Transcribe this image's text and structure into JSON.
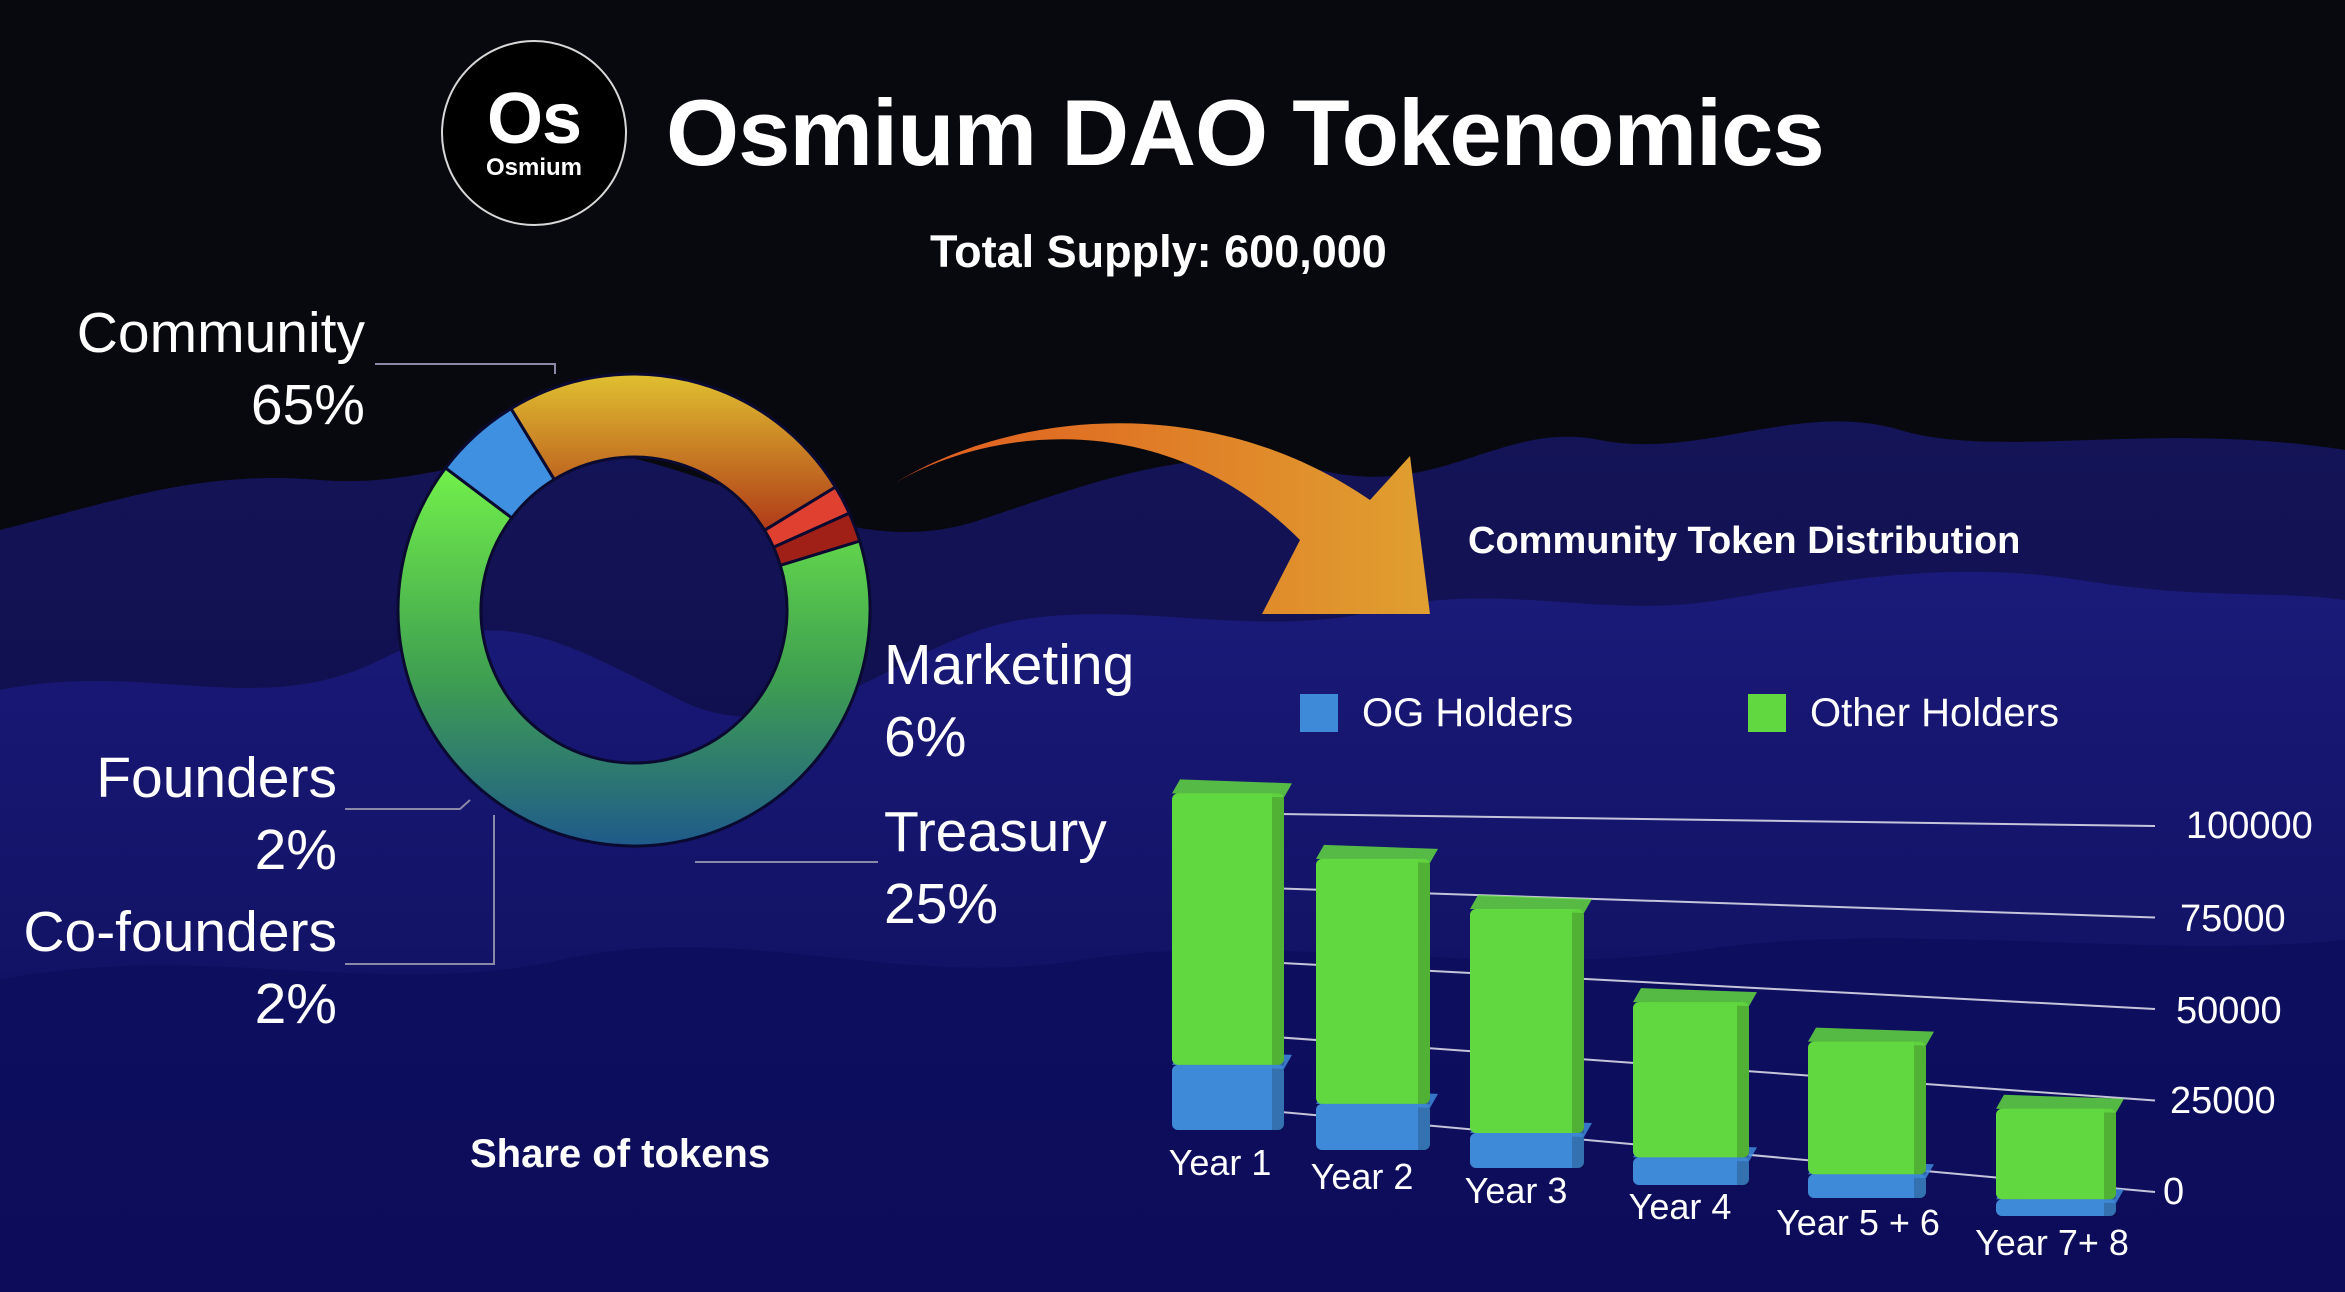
{
  "header": {
    "logo_mark": "Os",
    "logo_word": "Osmium",
    "title": "Osmium DAO Tokenomics",
    "subtitle": "Total Supply: 600,000"
  },
  "chart_data": [
    {
      "type": "pie",
      "caption": "Share of tokens",
      "slices": [
        {
          "label": "Community",
          "value": 65,
          "value_label": "65%",
          "color": "#6ee64a"
        },
        {
          "label": "Marketing",
          "value": 6,
          "value_label": "6%",
          "color": "#3f90e0"
        },
        {
          "label": "Treasury",
          "value": 25,
          "value_label": "25%",
          "color": "#e0a030"
        },
        {
          "label": "Co-founders",
          "value": 2,
          "value_label": "2%",
          "color": "#e04030"
        },
        {
          "label": "Founders",
          "value": 2,
          "value_label": "2%",
          "color": "#a02018"
        }
      ]
    },
    {
      "type": "bar",
      "stacked": true,
      "title": "Community Token Distribution",
      "categories": [
        "Year 1",
        "Year 2",
        "Year 3",
        "Year 4",
        "Year 5 + 6",
        "Year 7+ 8"
      ],
      "series": [
        {
          "name": "OG Holders",
          "color": "#3f8ad8",
          "values": [
            18000,
            13000,
            10000,
            8000,
            7000,
            5000
          ]
        },
        {
          "name": "Other Holders",
          "color": "#62d840",
          "values": [
            75000,
            69000,
            64000,
            45000,
            39000,
            27000
          ]
        }
      ],
      "y_ticks": [
        "0",
        "25000",
        "50000",
        "75000",
        "100000"
      ],
      "ylim": [
        0,
        100000
      ],
      "grid": true,
      "legend": "top"
    }
  ]
}
